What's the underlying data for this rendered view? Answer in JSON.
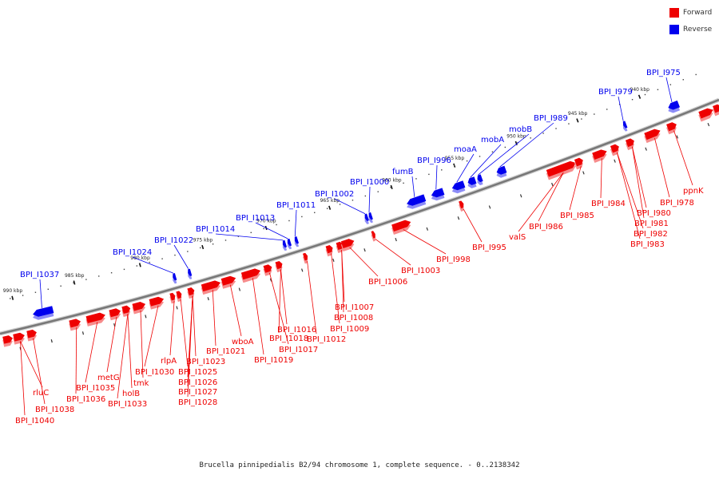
{
  "legend": [
    {
      "label": "Forward",
      "color": "#ee0000"
    },
    {
      "label": "Reverse",
      "color": "#0000ee"
    }
  ],
  "caption": "Brucella pinnipedialis B2/94 chromosome 1, complete sequence. - 0..2138342",
  "colors": {
    "forward": "#ee0000",
    "reverse": "#0000ee",
    "backbone": "#777777"
  },
  "ticks": [
    {
      "label": "990 kbp"
    },
    {
      "label": "985 kbp"
    },
    {
      "label": "980 kbp"
    },
    {
      "label": "975 kbp"
    },
    {
      "label": "970 kbp"
    },
    {
      "label": "965 kbp"
    },
    {
      "label": "960 kbp"
    },
    {
      "label": "955 kbp"
    },
    {
      "label": "950 kbp"
    },
    {
      "label": "945 kbp"
    },
    {
      "label": "940 kbp"
    }
  ],
  "reverse_genes": [
    {
      "label": "BPI_I1037"
    },
    {
      "label": "BPI_I1024"
    },
    {
      "label": "BPI_I1022"
    },
    {
      "label": "BPI_I1014"
    },
    {
      "label": "BPI_I1013"
    },
    {
      "label": "BPI_I1011"
    },
    {
      "label": "BPI_I1002"
    },
    {
      "label": "BPI_I1000"
    },
    {
      "label": "fumB"
    },
    {
      "label": "BPI_I996"
    },
    {
      "label": "moaA"
    },
    {
      "label": "mobA"
    },
    {
      "label": "mobB"
    },
    {
      "label": "BPI_I989"
    },
    {
      "label": "BPI_I979"
    },
    {
      "label": "BPI_I975"
    }
  ],
  "forward_genes": [
    {
      "label": "BPI_I1040"
    },
    {
      "label": "BPI_I1038"
    },
    {
      "label": "rluC"
    },
    {
      "label": "BPI_I1036"
    },
    {
      "label": "BPI_I1035"
    },
    {
      "label": "metG"
    },
    {
      "label": "holB"
    },
    {
      "label": "tmk"
    },
    {
      "label": "BPI_I1033"
    },
    {
      "label": "BPI_I1030"
    },
    {
      "label": "rlpA"
    },
    {
      "label": "BPI_I1028"
    },
    {
      "label": "BPI_I1027"
    },
    {
      "label": "BPI_I1026"
    },
    {
      "label": "BPI_I1025"
    },
    {
      "label": "BPI_I1023"
    },
    {
      "label": "BPI_I1021"
    },
    {
      "label": "wboA"
    },
    {
      "label": "BPI_I1019"
    },
    {
      "label": "BPI_I1017"
    },
    {
      "label": "BPI_I1018"
    },
    {
      "label": "BPI_I1016"
    },
    {
      "label": "BPI_I1012"
    },
    {
      "label": "BPI_I1009"
    },
    {
      "label": "BPI_I1008"
    },
    {
      "label": "BPI_I1007"
    },
    {
      "label": "BPI_I1006"
    },
    {
      "label": "BPI_I1003"
    },
    {
      "label": "BPI_I998"
    },
    {
      "label": "BPI_I995"
    },
    {
      "label": "valS"
    },
    {
      "label": "BPI_I986"
    },
    {
      "label": "BPI_I985"
    },
    {
      "label": "BPI_I984"
    },
    {
      "label": "BPI_I983"
    },
    {
      "label": "BPI_I982"
    },
    {
      "label": "BPI_I981"
    },
    {
      "label": "BPI_I980"
    },
    {
      "label": "BPI_I978"
    },
    {
      "label": "ppnK"
    }
  ]
}
